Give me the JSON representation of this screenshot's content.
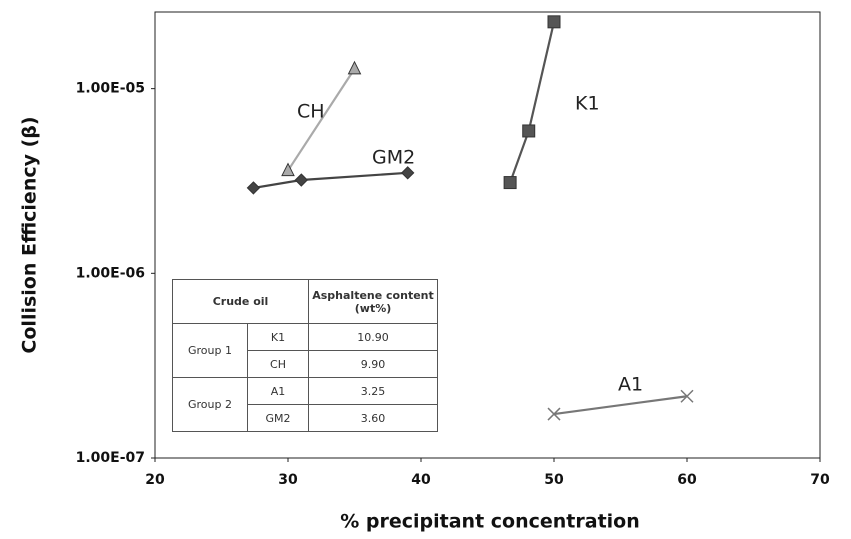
{
  "chart_data": {
    "type": "line",
    "x_label": "% precipitant concentration",
    "y_label": "Collision Efficiency (β)",
    "log_y": true,
    "grid": false,
    "xlim": [
      20,
      70
    ],
    "xticks": [
      20,
      30,
      40,
      50,
      60,
      70
    ],
    "ylim": [
      1e-07,
      2.6e-05
    ],
    "yticks": [
      {
        "value": 1e-07,
        "label": "1.00E-07"
      },
      {
        "value": 1e-06,
        "label": "1.00E-06"
      },
      {
        "value": 1e-05,
        "label": "1.00E-05"
      }
    ],
    "series": [
      {
        "name": "K1",
        "color": "#555555",
        "marker": "square",
        "x": [
          46.7,
          48.1,
          50
        ],
        "values": [
          3.1e-06,
          5.9e-06,
          2.3e-05
        ]
      },
      {
        "name": "CH",
        "color": "#aaaaaa",
        "marker": "triangle",
        "x": [
          30,
          35
        ],
        "values": [
          3.6e-06,
          1.28e-05
        ]
      },
      {
        "name": "GM2",
        "color": "#444444",
        "marker": "diamond",
        "x": [
          27.4,
          31,
          39
        ],
        "values": [
          2.9e-06,
          3.2e-06,
          3.5e-06
        ]
      },
      {
        "name": "A1",
        "color": "#777777",
        "marker": "x",
        "x": [
          50,
          60
        ],
        "values": [
          1.73e-07,
          2.16e-07
        ]
      }
    ]
  },
  "inset_table": {
    "header": [
      "Crude oil",
      "Asphaltene content (wt%)"
    ],
    "groups": [
      {
        "name": "Group 1",
        "rows": [
          [
            "K1",
            "10.90"
          ],
          [
            "CH",
            "9.90"
          ]
        ]
      },
      {
        "name": "Group 2",
        "rows": [
          [
            "A1",
            "3.25"
          ],
          [
            "GM2",
            "3.60"
          ]
        ]
      }
    ]
  }
}
